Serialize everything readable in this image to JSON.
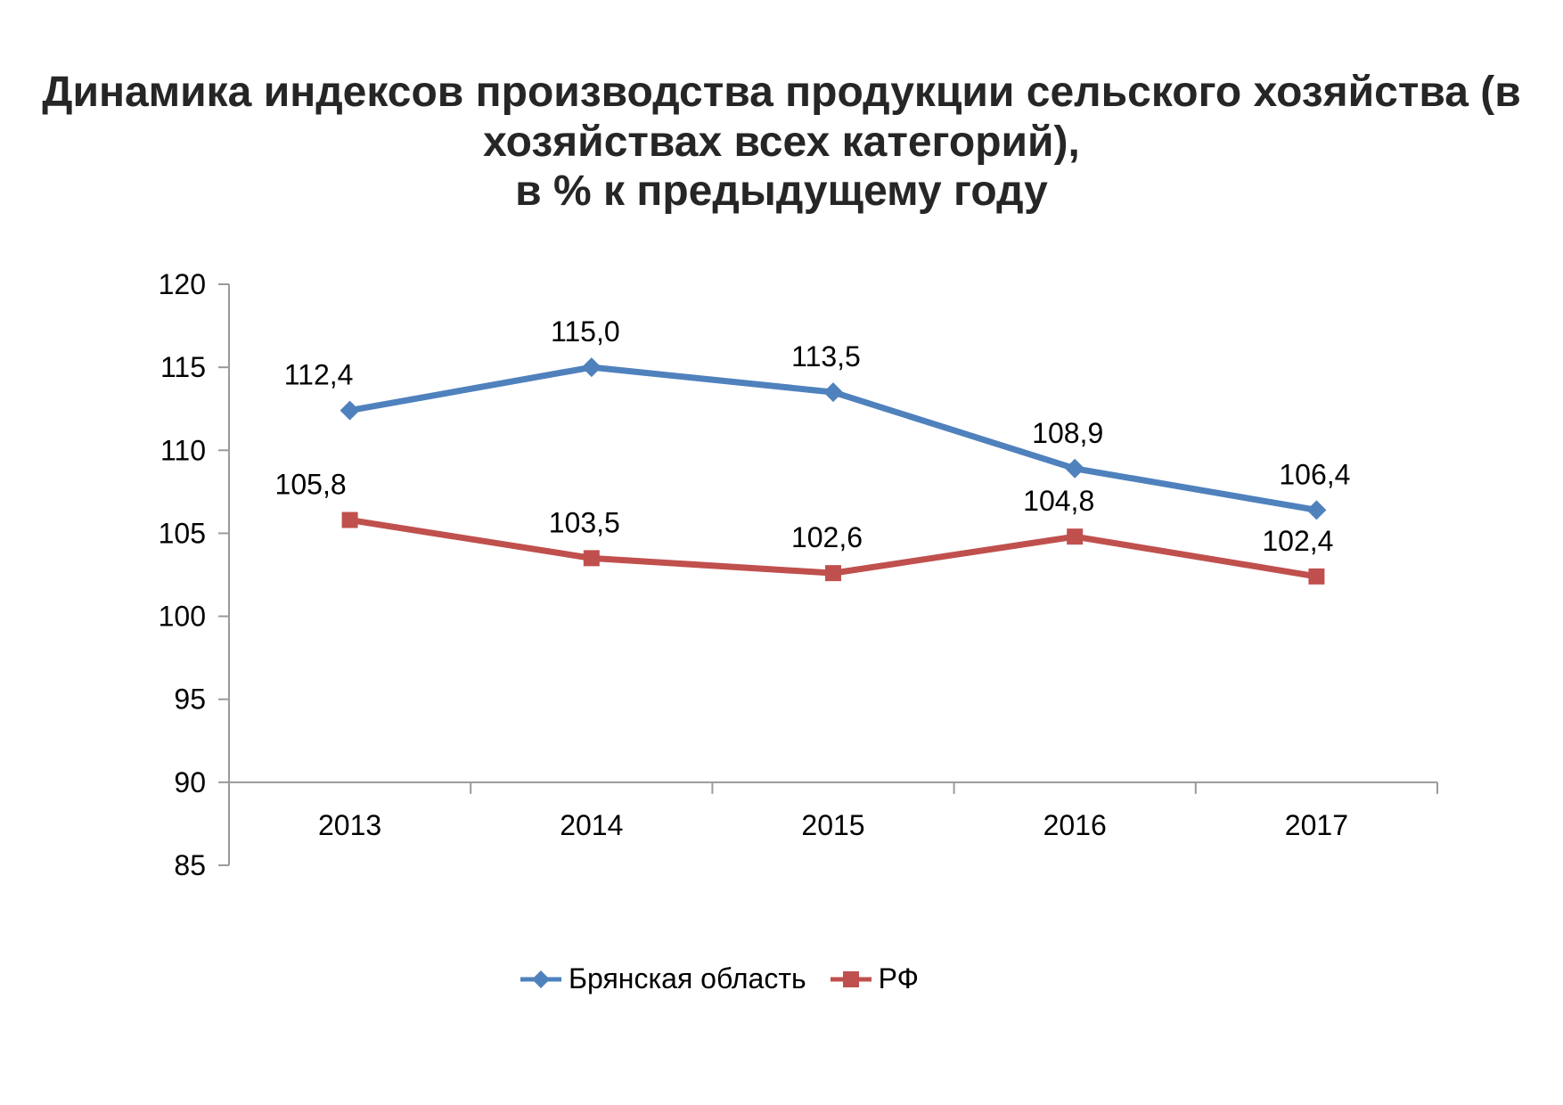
{
  "title": "Динамика индексов производства продукции сельского хозяйства (в\nхозяйствах всех категорий),\nв % к предыдущему году",
  "chart_data": {
    "type": "line",
    "categories": [
      "2013",
      "2014",
      "2015",
      "2016",
      "2017"
    ],
    "series": [
      {
        "name": "Брянская область",
        "values": [
          112.4,
          115.0,
          113.5,
          108.9,
          106.4
        ],
        "labels": [
          "112,4",
          "115,0",
          "113,5",
          "108,9",
          "106,4"
        ],
        "color": "#4F81BD",
        "marker": "diamond"
      },
      {
        "name": "РФ",
        "values": [
          105.8,
          103.5,
          102.6,
          104.8,
          102.4
        ],
        "labels": [
          "105,8",
          "103,5",
          "102,6",
          "104,8",
          "102,4"
        ],
        "color": "#C0504D",
        "marker": "square"
      }
    ],
    "ylim": [
      85,
      120
    ],
    "ytick_step": 5,
    "ytick_labels": [
      "120",
      "115",
      "110",
      "105",
      "100",
      "95",
      "90",
      "85"
    ],
    "x_axis_cross_value": 90,
    "grid": false,
    "legend_position": "bottom",
    "decimal_separator": ","
  },
  "colors": {
    "axis": "#9a9a9a",
    "label_text": "#000000",
    "title_text": "#262626"
  }
}
